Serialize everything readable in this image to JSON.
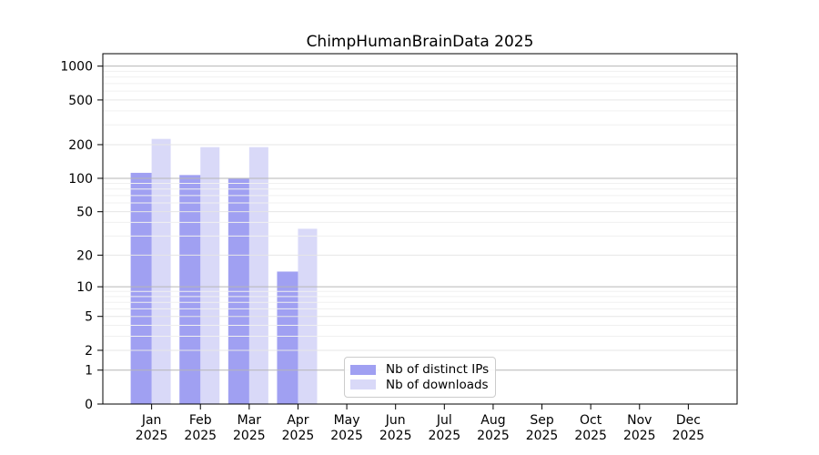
{
  "chart_data": {
    "type": "bar",
    "title": "ChimpHumanBrainData 2025",
    "categories": [
      "Jan",
      "Feb",
      "Mar",
      "Apr",
      "May",
      "Jun",
      "Jul",
      "Aug",
      "Sep",
      "Oct",
      "Nov",
      "Dec"
    ],
    "year_label": "2025",
    "series": [
      {
        "name": "Nb of distinct IPs",
        "color": "#a0a0f2",
        "values": [
          112,
          107,
          100,
          14,
          0,
          0,
          0,
          0,
          0,
          0,
          0,
          0
        ]
      },
      {
        "name": "Nb of downloads",
        "color": "#d9d9f8",
        "values": [
          225,
          190,
          190,
          35,
          0,
          0,
          0,
          0,
          0,
          0,
          0,
          0
        ]
      }
    ],
    "yscale": "log10(1+x)",
    "yticks": [
      0,
      1,
      2,
      5,
      10,
      20,
      50,
      100,
      200,
      500,
      1000
    ],
    "ytick_labels": [
      "0",
      "1",
      "2",
      "5",
      "10",
      "20",
      "50",
      "100",
      "200",
      "500",
      "1000"
    ],
    "minor_gridlines": [
      3,
      4,
      6,
      7,
      8,
      9,
      30,
      40,
      60,
      70,
      80,
      90,
      300,
      400,
      600,
      700,
      800,
      900
    ],
    "ylim": [
      0,
      1290
    ],
    "grid": true,
    "legend_position": "lower-center",
    "colors": {
      "decade_grid": "#b6b6b6",
      "major_grid": "#e6e6e6",
      "minor_grid": "#f0f0f0",
      "axis": "#000000",
      "text": "#000000"
    }
  }
}
